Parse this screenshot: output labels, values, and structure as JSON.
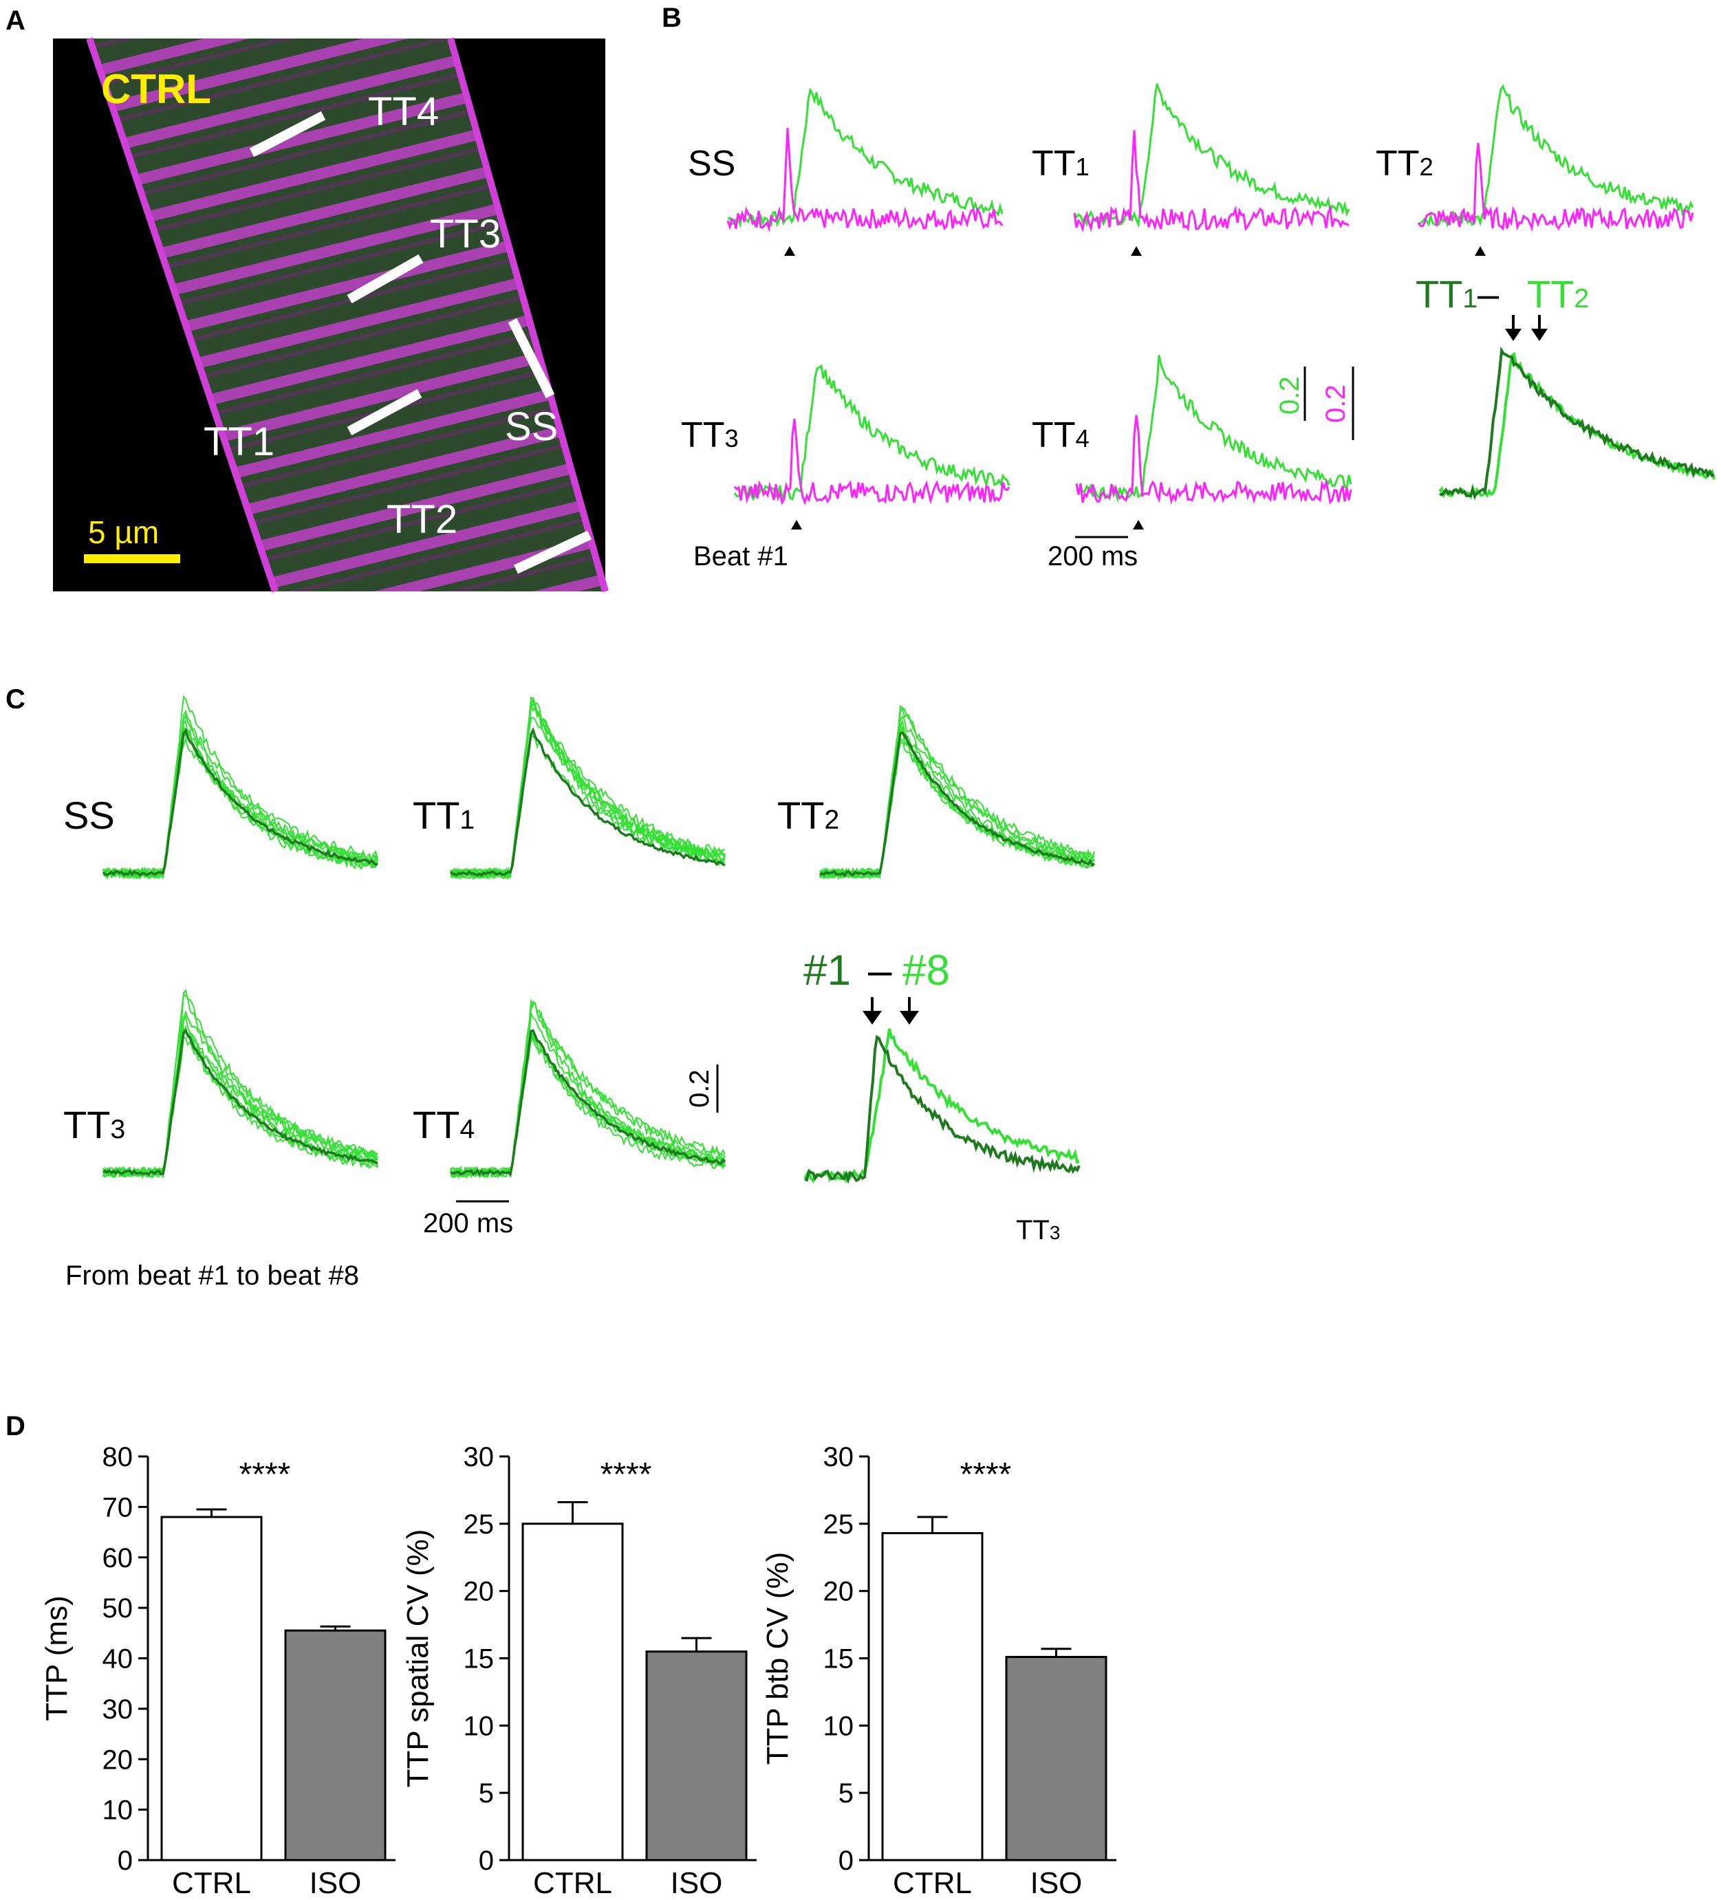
{
  "panels": {
    "A": "A",
    "B": "B",
    "C": "C",
    "D": "D"
  },
  "colors": {
    "green": "#33e033",
    "dark_green": "#1e7a1e",
    "magenta": "#ff22ff",
    "yellow": "#ffee00",
    "bar_iso": "#808080",
    "bar_ctrl": "#ffffff"
  },
  "panel_a": {
    "condition": "CTRL",
    "scale_bar": "5 µm",
    "regions": [
      "TT4",
      "TT3",
      "SS",
      "TT1",
      "TT2"
    ]
  },
  "panel_b": {
    "traces": [
      {
        "label": "SS"
      },
      {
        "label": "TT1"
      },
      {
        "label": "TT2"
      },
      {
        "label": "TT3"
      },
      {
        "label": "TT4"
      }
    ],
    "overlay_title_left": "TT1",
    "overlay_dash": "–",
    "overlay_title_right": "TT2",
    "scale_green": "0.2",
    "scale_magenta": "0.2",
    "beat_label": "Beat #1",
    "time_scale": "200 ms"
  },
  "panel_c": {
    "traces": [
      {
        "label": "SS"
      },
      {
        "label": "TT1"
      },
      {
        "label": "TT2"
      },
      {
        "label": "TT3"
      },
      {
        "label": "TT4"
      }
    ],
    "overlay_title_left": "#1",
    "overlay_dash": "–",
    "overlay_title_right": "#8",
    "overlay_region": "TT3",
    "scale": "0.2",
    "time_scale": "200 ms",
    "caption": "From beat #1 to beat #8"
  },
  "chart_data": [
    {
      "type": "bar",
      "categories": [
        "CTRL",
        "ISO"
      ],
      "values": [
        68,
        45.5
      ],
      "errors": [
        1.5,
        0.8
      ],
      "ylabel": "TTP (ms)",
      "ylim": [
        0,
        80
      ],
      "yticks": [
        0,
        10,
        20,
        30,
        40,
        50,
        60,
        70,
        80
      ],
      "significance": "****"
    },
    {
      "type": "bar",
      "categories": [
        "CTRL",
        "ISO"
      ],
      "values": [
        25,
        15.5
      ],
      "errors": [
        1.6,
        1.0
      ],
      "ylabel": "TTP spatial CV (%)",
      "ylim": [
        0,
        30
      ],
      "yticks": [
        0,
        5,
        10,
        15,
        20,
        25,
        30
      ],
      "significance": "****"
    },
    {
      "type": "bar",
      "categories": [
        "CTRL",
        "ISO"
      ],
      "values": [
        24.3,
        15.1
      ],
      "errors": [
        1.2,
        0.6
      ],
      "ylabel": "TTP btb CV (%)",
      "ylim": [
        0,
        30
      ],
      "yticks": [
        0,
        5,
        10,
        15,
        20,
        25,
        30
      ],
      "significance": "****"
    }
  ]
}
